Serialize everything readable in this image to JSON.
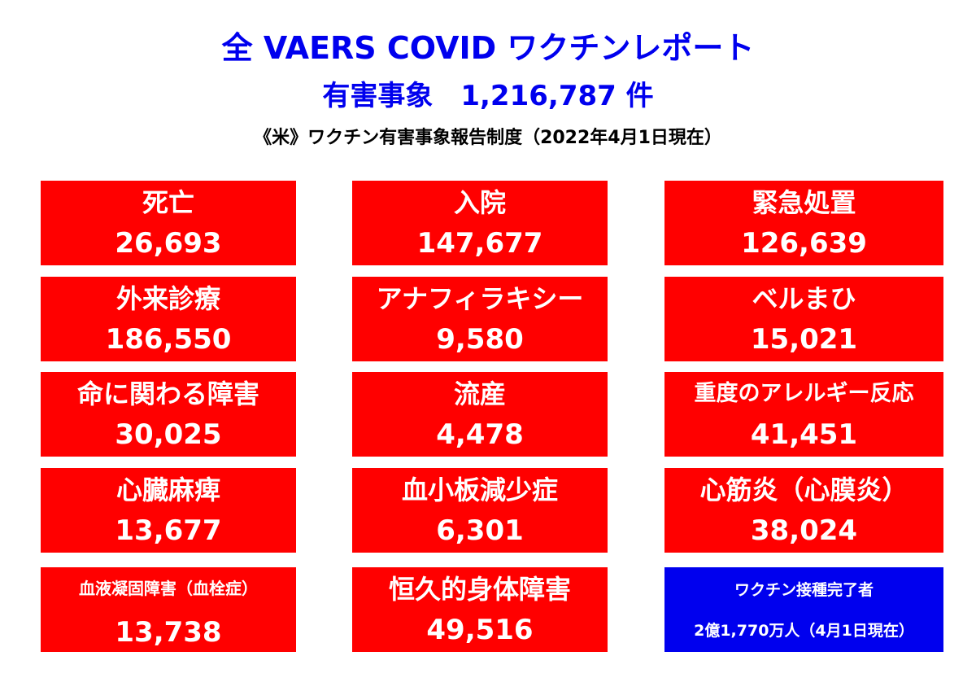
{
  "header": {
    "title": "全 VAERS COVID ワクチンレポート",
    "subtitle": "有害事象　1,216,787 件",
    "note": "《米》ワクチン有害事象報告制度（2022年4月1日現在）"
  },
  "colors": {
    "title_blue": "#0000ee",
    "box_red": "#ff0000",
    "box_blue": "#0000ee",
    "box_text": "#ffffff"
  },
  "boxes": [
    {
      "label": "死亡",
      "value": "26,693"
    },
    {
      "label": "入院",
      "value": "147,677"
    },
    {
      "label": "緊急処置",
      "value": "126,639"
    },
    {
      "label": "外来診療",
      "value": "186,550"
    },
    {
      "label": "アナフィラキシー",
      "value": "9,580"
    },
    {
      "label": "ベルまひ",
      "value": "15,021"
    },
    {
      "label": "命に関わる障害",
      "value": "30,025"
    },
    {
      "label": "流産",
      "value": "4,478"
    },
    {
      "label": "重度のアレルギー反応",
      "value": "41,451"
    },
    {
      "label": "心臓麻痺",
      "value": "13,677"
    },
    {
      "label": "血小板減少症",
      "value": "6,301"
    },
    {
      "label": "心筋炎（心膜炎）",
      "value": "38,024"
    },
    {
      "label": "血液凝固障害（血栓症）",
      "value": "13,738"
    },
    {
      "label": "恒久的身体障害",
      "value": "49,516"
    },
    {
      "label": "ワクチン接種完了者",
      "value": "2億1,770万人（4月1日現在）"
    }
  ]
}
